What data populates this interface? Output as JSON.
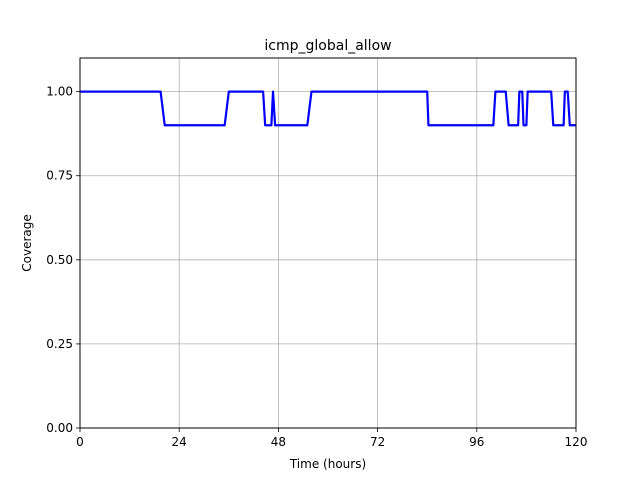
{
  "chart_data": {
    "type": "line",
    "title": "icmp_global_allow",
    "xlabel": "Time (hours)",
    "ylabel": "Coverage",
    "xlim": [
      0,
      120
    ],
    "ylim": [
      0,
      1.1
    ],
    "xticks": [
      0,
      24,
      48,
      72,
      96,
      120
    ],
    "xtick_labels": [
      "0",
      "24",
      "48",
      "72",
      "96",
      "120"
    ],
    "yticks": [
      0,
      0.25,
      0.5,
      0.75,
      1.0
    ],
    "ytick_labels": [
      "0.00",
      "0.25",
      "0.50",
      "0.75",
      "1.00"
    ],
    "grid": true,
    "legend": "none",
    "series": [
      {
        "color": "#0000ff",
        "x": [
          0,
          19.5,
          20.5,
          35,
          36,
          44.3,
          44.8,
          46.3,
          46.7,
          47.2,
          55,
          56,
          84,
          84.3,
          100,
          100.5,
          103,
          103.7,
          106,
          106.3,
          107,
          107.3,
          108,
          108.3,
          114,
          114.5,
          117,
          117.3,
          118,
          118.5,
          120
        ],
        "y": [
          1.0,
          1.0,
          0.9,
          0.9,
          1.0,
          1.0,
          0.9,
          0.9,
          1.0,
          0.9,
          0.9,
          1.0,
          1.0,
          0.9,
          0.9,
          1.0,
          1.0,
          0.9,
          0.9,
          1.0,
          1.0,
          0.9,
          0.9,
          1.0,
          1.0,
          0.9,
          0.9,
          1.0,
          1.0,
          0.9,
          0.9
        ]
      }
    ]
  }
}
